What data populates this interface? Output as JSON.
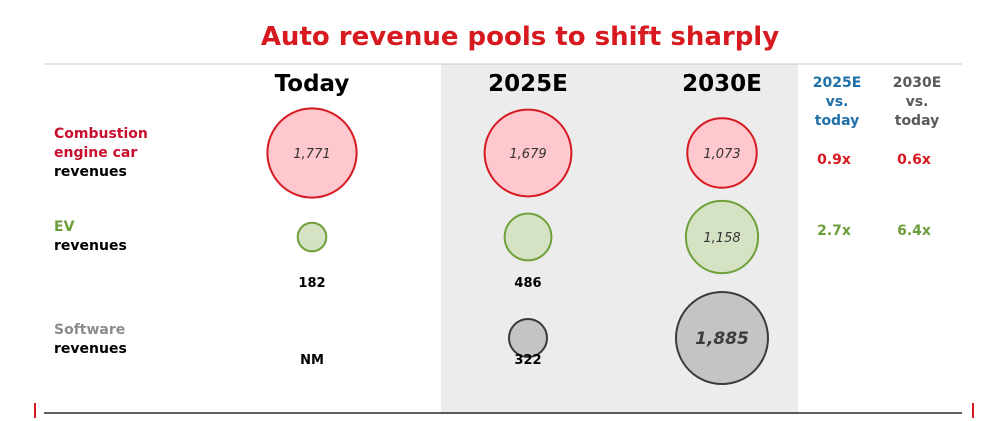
{
  "chart_data": {
    "type": "bubble-matrix",
    "title": "Auto revenue pools to shift sharply",
    "columns": [
      "Today",
      "2025E",
      "2030E"
    ],
    "comparison_headers": [
      {
        "lines": [
          "2025E",
          "vs.",
          "today"
        ],
        "color": "#1f6fa8"
      },
      {
        "lines": [
          "2030E",
          "vs.",
          "today"
        ],
        "color": "#595959"
      }
    ],
    "rows": [
      {
        "key": "combustion",
        "label_lines": [
          {
            "text": "Combustion",
            "color": "#c8102e"
          },
          {
            "text": "engine car",
            "color": "#c8102e"
          },
          {
            "text": "revenues",
            "color": "#000000"
          }
        ],
        "fill": "#ffc7ce",
        "stroke": "#d71920",
        "ratio_color": "#d71920",
        "values": [
          1771,
          1679,
          1073
        ],
        "labels": [
          "1,771",
          "1,679",
          "1,073"
        ],
        "value_position": "inside",
        "ratios": [
          "0.9x",
          "0.6x"
        ]
      },
      {
        "key": "ev",
        "label_lines": [
          {
            "text": "EV",
            "color": "#6d9e3c"
          },
          {
            "text": "revenues",
            "color": "#000000"
          }
        ],
        "fill": "#d5e2c4",
        "stroke": "#70a03a",
        "ratio_color": "#6d9e3c",
        "values": [
          182,
          486,
          1158
        ],
        "labels": [
          "182",
          "486",
          "1,158"
        ],
        "value_position": "below-except-last",
        "ratios": [
          "2.7x",
          "6.4x"
        ]
      },
      {
        "key": "software",
        "label_lines": [
          {
            "text": "Software",
            "color": "#8c8c8c"
          },
          {
            "text": "revenues",
            "color": "#000000"
          }
        ],
        "fill": "#c4c4c4",
        "stroke": "#3a3a3a",
        "ratio_color": "#595959",
        "values": [
          null,
          322,
          1885
        ],
        "labels": [
          "NM",
          "322",
          "1,885"
        ],
        "value_position": "below-except-last",
        "ratios": []
      }
    ]
  },
  "colors": {
    "title": "#d71920",
    "highlight_column_bg": "#ececec",
    "rule": "#000000",
    "edge_marks": "#d71920"
  }
}
